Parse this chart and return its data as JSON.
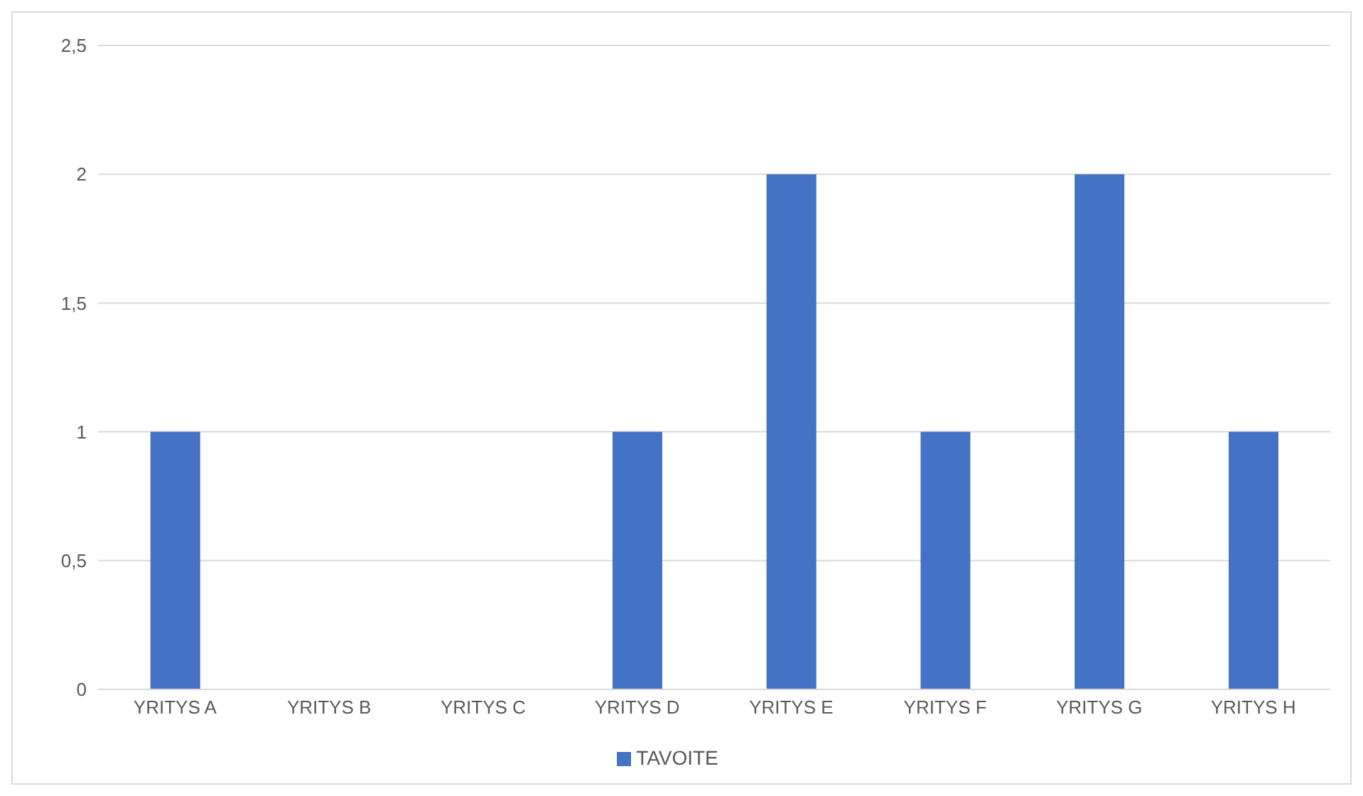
{
  "chart_data": {
    "type": "bar",
    "categories": [
      "YRITYS A",
      "YRITYS B",
      "YRITYS C",
      "YRITYS D",
      "YRITYS E",
      "YRITYS F",
      "YRITYS G",
      "YRITYS H"
    ],
    "series": [
      {
        "name": "TAVOITE",
        "color": "#4472c4",
        "values": [
          1,
          0,
          0,
          1,
          2,
          1,
          2,
          1
        ]
      }
    ],
    "ylim": [
      0,
      2.5
    ],
    "yticks": [
      0,
      {
        "value": 0.5,
        "label": "0,5"
      },
      1,
      {
        "value": 1.5,
        "label": "1,5"
      },
      2,
      {
        "value": 2.5,
        "label": "2,5"
      }
    ],
    "grid": "y",
    "legend": "bottom"
  }
}
